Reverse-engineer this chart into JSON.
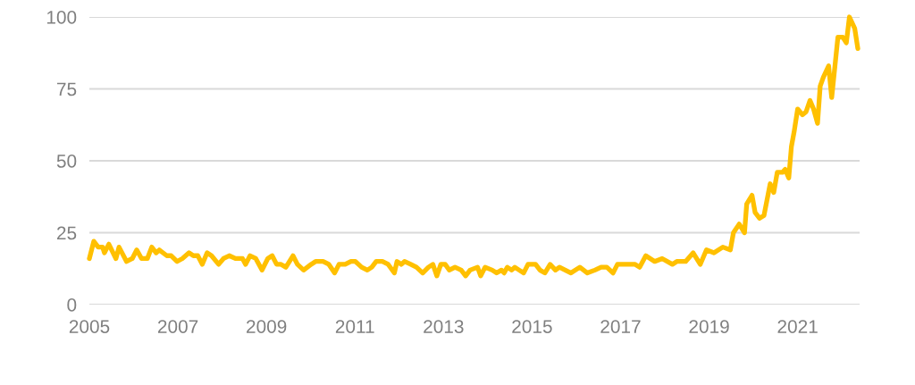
{
  "chart_data": {
    "type": "line",
    "x": [
      2005.0,
      2005.1,
      2005.2,
      2005.3,
      2005.34,
      2005.44,
      2005.6,
      2005.67,
      2005.84,
      2005.97,
      2006.07,
      2006.18,
      2006.31,
      2006.41,
      2006.51,
      2006.58,
      2006.75,
      2006.85,
      2006.98,
      2007.1,
      2007.25,
      2007.35,
      2007.45,
      2007.55,
      2007.66,
      2007.76,
      2007.92,
      2008.03,
      2008.16,
      2008.3,
      2008.46,
      2008.53,
      2008.63,
      2008.76,
      2008.9,
      2009.03,
      2009.13,
      2009.23,
      2009.33,
      2009.44,
      2009.6,
      2009.7,
      2009.84,
      2010.01,
      2010.11,
      2010.18,
      2010.28,
      2010.41,
      2010.54,
      2010.64,
      2010.78,
      2010.91,
      2011.01,
      2011.08,
      2011.15,
      2011.28,
      2011.38,
      2011.48,
      2011.62,
      2011.75,
      2011.89,
      2011.95,
      2012.05,
      2012.12,
      2012.26,
      2012.39,
      2012.53,
      2012.66,
      2012.76,
      2012.85,
      2012.94,
      2013.04,
      2013.13,
      2013.26,
      2013.4,
      2013.5,
      2013.6,
      2013.77,
      2013.84,
      2013.94,
      2014.1,
      2014.2,
      2014.31,
      2014.37,
      2014.44,
      2014.54,
      2014.61,
      2014.71,
      2014.81,
      2014.91,
      2015.08,
      2015.18,
      2015.29,
      2015.41,
      2015.53,
      2015.62,
      2015.75,
      2015.88,
      2016.08,
      2016.25,
      2016.42,
      2016.56,
      2016.69,
      2016.83,
      2016.93,
      2017.06,
      2017.2,
      2017.33,
      2017.43,
      2017.57,
      2017.67,
      2017.77,
      2017.94,
      2018.17,
      2018.27,
      2018.47,
      2018.64,
      2018.8,
      2018.94,
      2019.11,
      2019.31,
      2019.48,
      2019.55,
      2019.68,
      2019.8,
      2019.85,
      2019.97,
      2020.04,
      2020.14,
      2020.24,
      2020.38,
      2020.46,
      2020.54,
      2020.66,
      2020.72,
      2020.8,
      2020.86,
      2020.92,
      2021.0,
      2021.11,
      2021.19,
      2021.28,
      2021.36,
      2021.45,
      2021.51,
      2021.58,
      2021.7,
      2021.77,
      2021.91,
      2022.02,
      2022.1,
      2022.17,
      2022.29,
      2022.36
    ],
    "values": [
      16,
      22,
      20,
      20,
      18,
      21,
      16,
      20,
      15,
      16,
      19,
      16,
      16,
      20,
      18,
      19,
      17,
      17,
      15,
      16,
      18,
      17,
      17,
      14,
      18,
      17,
      14,
      16,
      17,
      16,
      16,
      14,
      17,
      16,
      12,
      16,
      17,
      14,
      14,
      13,
      17,
      14,
      12,
      14,
      15,
      15,
      15,
      14,
      11,
      14,
      14,
      15,
      15,
      14,
      13,
      12,
      13,
      15,
      15,
      14,
      11,
      15,
      14,
      15,
      14,
      13,
      11,
      13,
      14,
      10,
      14,
      14,
      12,
      13,
      12,
      10,
      12,
      13,
      10,
      13,
      12,
      11,
      12,
      11,
      13,
      12,
      13,
      12,
      11,
      14,
      14,
      12,
      11,
      14,
      12,
      13,
      12,
      11,
      13,
      11,
      12,
      13,
      13,
      11,
      14,
      14,
      14,
      14,
      13,
      17,
      16,
      15,
      16,
      14,
      15,
      15,
      18,
      14,
      19,
      18,
      20,
      19,
      25,
      28,
      25,
      35,
      38,
      32,
      30,
      31,
      42,
      39,
      46,
      46,
      47,
      44,
      55,
      60,
      68,
      66,
      67,
      71,
      68,
      63,
      76,
      79,
      83,
      72,
      93,
      93,
      91,
      100,
      96,
      89
    ],
    "color": "#ffc000",
    "xlim": [
      2005,
      2022.4
    ],
    "xticks": [
      2005,
      2007,
      2009,
      2011,
      2013,
      2015,
      2017,
      2019,
      2021
    ],
    "ylim": [
      0,
      100
    ],
    "yticks": [
      0,
      25,
      50,
      75,
      100
    ],
    "grid": "y",
    "legend": false,
    "marker": "none",
    "line_style": "solid"
  }
}
